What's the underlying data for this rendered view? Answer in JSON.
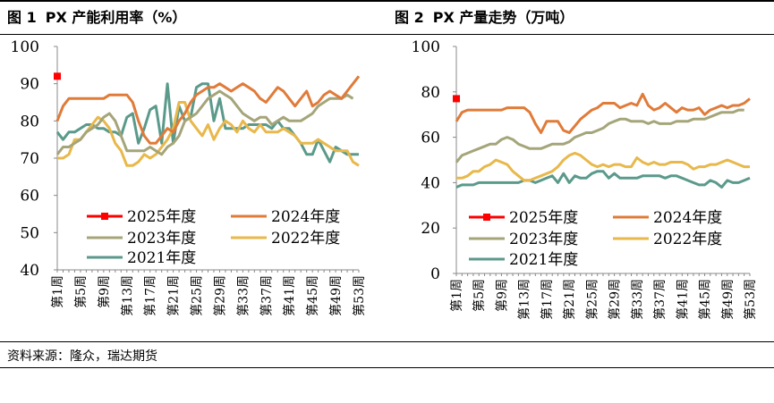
{
  "source": "资料来源：隆众，瑞达期货",
  "charts": [
    {
      "num": "图 1",
      "title": "PX 产能利用率（%）"
    },
    {
      "num": "图 2",
      "title": "PX 产量走势（万吨）"
    }
  ],
  "colors": {
    "2025": "#ff0000",
    "2024": "#e07b39",
    "2023": "#a5a57a",
    "2022": "#e8b84b",
    "2021": "#5b9a8b"
  },
  "chart_data": [
    {
      "type": "line",
      "title": "PX 产能利用率（%）",
      "ylim": [
        40,
        100
      ],
      "yticks": [
        40,
        50,
        60,
        70,
        80,
        90,
        100
      ],
      "x_range": [
        1,
        53
      ],
      "x_tick_labels": [
        "第1周",
        "第5周",
        "第9周",
        "第13周",
        "第17周",
        "第21周",
        "第25周",
        "第29周",
        "第33周",
        "第37周",
        "第41周",
        "第45周",
        "第49周",
        "第53周"
      ],
      "legend": [
        "2025年度",
        "2024年度",
        "2023年度",
        "2022年度",
        "2021年度"
      ],
      "series": [
        {
          "name": "2025年度",
          "x": [
            1
          ],
          "values": [
            92
          ]
        },
        {
          "name": "2024年度",
          "x": [
            1,
            2,
            3,
            4,
            5,
            6,
            7,
            8,
            9,
            10,
            11,
            12,
            13,
            14,
            15,
            16,
            17,
            18,
            19,
            20,
            21,
            22,
            23,
            24,
            25,
            26,
            27,
            28,
            29,
            30,
            31,
            32,
            33,
            34,
            35,
            36,
            37,
            38,
            39,
            40,
            41,
            42,
            43,
            44,
            45,
            46,
            47,
            48,
            49,
            50,
            51,
            52,
            53
          ],
          "values": [
            80,
            84,
            86,
            86,
            86,
            86,
            86,
            86,
            86,
            87,
            87,
            87,
            87,
            85,
            80,
            76,
            74,
            74,
            76,
            78,
            77,
            80,
            82,
            85,
            87,
            88,
            89,
            89,
            90,
            89,
            88,
            89,
            90,
            89,
            88,
            86,
            85,
            87,
            89,
            88,
            86,
            84,
            86,
            88,
            84,
            85,
            87,
            88,
            87,
            86,
            88,
            90,
            92
          ]
        },
        {
          "name": "2023年度",
          "x": [
            1,
            2,
            3,
            4,
            5,
            6,
            7,
            8,
            9,
            10,
            11,
            12,
            13,
            14,
            15,
            16,
            17,
            18,
            19,
            20,
            21,
            22,
            23,
            24,
            25,
            26,
            27,
            28,
            29,
            30,
            31,
            32,
            33,
            34,
            35,
            36,
            37,
            38,
            39,
            40,
            41,
            42,
            43,
            44,
            45,
            46,
            47,
            48,
            49,
            50,
            51,
            52
          ],
          "values": [
            71,
            73,
            73,
            74,
            75,
            77,
            78,
            79,
            81,
            82,
            80,
            76,
            72,
            72,
            72,
            72,
            73,
            72,
            71,
            73,
            74,
            76,
            80,
            81,
            82,
            84,
            86,
            87,
            88,
            87,
            86,
            84,
            82,
            81,
            80,
            81,
            81,
            79,
            80,
            81,
            80,
            80,
            80,
            81,
            82,
            84,
            85,
            86,
            86,
            86,
            87,
            86
          ]
        },
        {
          "name": "2022年度",
          "x": [
            1,
            2,
            3,
            4,
            5,
            6,
            7,
            8,
            9,
            10,
            11,
            12,
            13,
            14,
            15,
            16,
            17,
            18,
            19,
            20,
            21,
            22,
            23,
            24,
            25,
            26,
            27,
            28,
            29,
            30,
            31,
            32,
            33,
            34,
            35,
            36,
            37,
            38,
            39,
            40,
            41,
            42,
            43,
            44,
            45,
            46,
            47,
            48,
            49,
            50,
            51,
            52,
            53
          ],
          "values": [
            70,
            70,
            71,
            75,
            75,
            77,
            79,
            81,
            80,
            78,
            74,
            72,
            68,
            68,
            69,
            71,
            70,
            71,
            73,
            75,
            78,
            85,
            85,
            80,
            78,
            76,
            79,
            75,
            78,
            80,
            79,
            77,
            80,
            78,
            77,
            79,
            77,
            77,
            77,
            78,
            77,
            76,
            74,
            74,
            74,
            75,
            74,
            73,
            72,
            72,
            72,
            69,
            68
          ]
        },
        {
          "name": "2021年度",
          "x": [
            1,
            2,
            3,
            4,
            5,
            6,
            7,
            8,
            9,
            10,
            11,
            12,
            13,
            14,
            15,
            16,
            17,
            18,
            19,
            20,
            21,
            22,
            23,
            24,
            25,
            26,
            27,
            28,
            29,
            30,
            31,
            32,
            33,
            34,
            35,
            36,
            37,
            38,
            39,
            40,
            41,
            42,
            43,
            44,
            45,
            46,
            47,
            48,
            49,
            50,
            51,
            52,
            53
          ],
          "values": [
            77,
            75,
            77,
            77,
            78,
            79,
            79,
            78,
            78,
            77,
            77,
            76,
            81,
            82,
            74,
            78,
            83,
            84,
            74,
            90,
            74,
            84,
            80,
            81,
            89,
            90,
            90,
            80,
            86,
            78,
            78,
            78,
            78,
            79,
            79,
            79,
            79,
            78,
            80,
            78,
            78,
            76,
            74,
            71,
            71,
            75,
            72,
            69,
            73,
            72,
            71,
            71,
            71
          ]
        }
      ]
    },
    {
      "type": "line",
      "title": "PX 产量走势（万吨）",
      "ylim": [
        0,
        100
      ],
      "yticks": [
        0,
        20,
        40,
        60,
        80,
        100
      ],
      "x_range": [
        1,
        53
      ],
      "x_tick_labels": [
        "第1周",
        "第5周",
        "第9周",
        "第13周",
        "第17周",
        "第21周",
        "第25周",
        "第29周",
        "第33周",
        "第37周",
        "第41周",
        "第45周",
        "第49周",
        "第53周"
      ],
      "legend": [
        "2025年度",
        "2024年度",
        "2023年度",
        "2022年度",
        "2021年度"
      ],
      "series": [
        {
          "name": "2025年度",
          "x": [
            1
          ],
          "values": [
            77
          ]
        },
        {
          "name": "2024年度",
          "x": [
            1,
            2,
            3,
            4,
            5,
            6,
            7,
            8,
            9,
            10,
            11,
            12,
            13,
            14,
            15,
            16,
            17,
            18,
            19,
            20,
            21,
            22,
            23,
            24,
            25,
            26,
            27,
            28,
            29,
            30,
            31,
            32,
            33,
            34,
            35,
            36,
            37,
            38,
            39,
            40,
            41,
            42,
            43,
            44,
            45,
            46,
            47,
            48,
            49,
            50,
            51,
            52,
            53
          ],
          "values": [
            67,
            71,
            72,
            72,
            72,
            72,
            72,
            72,
            72,
            73,
            73,
            73,
            73,
            71,
            66,
            62,
            67,
            67,
            67,
            63,
            62,
            65,
            68,
            70,
            72,
            73,
            75,
            75,
            75,
            73,
            74,
            75,
            74,
            79,
            74,
            72,
            73,
            75,
            73,
            71,
            73,
            72,
            72,
            73,
            70,
            72,
            73,
            74,
            73,
            74,
            74,
            75,
            77
          ]
        },
        {
          "name": "2023年度",
          "x": [
            1,
            2,
            3,
            4,
            5,
            6,
            7,
            8,
            9,
            10,
            11,
            12,
            13,
            14,
            15,
            16,
            17,
            18,
            19,
            20,
            21,
            22,
            23,
            24,
            25,
            26,
            27,
            28,
            29,
            30,
            31,
            32,
            33,
            34,
            35,
            36,
            37,
            38,
            39,
            40,
            41,
            42,
            43,
            44,
            45,
            46,
            47,
            48,
            49,
            50,
            51,
            52
          ],
          "values": [
            49,
            52,
            53,
            54,
            55,
            56,
            57,
            57,
            59,
            60,
            59,
            57,
            56,
            55,
            55,
            55,
            56,
            57,
            57,
            57,
            58,
            60,
            61,
            62,
            62,
            63,
            64,
            66,
            67,
            68,
            68,
            67,
            67,
            67,
            66,
            67,
            66,
            66,
            66,
            67,
            67,
            67,
            68,
            68,
            68,
            69,
            70,
            71,
            71,
            71,
            72,
            72
          ]
        },
        {
          "name": "2022年度",
          "x": [
            1,
            2,
            3,
            4,
            5,
            6,
            7,
            8,
            9,
            10,
            11,
            12,
            13,
            14,
            15,
            16,
            17,
            18,
            19,
            20,
            21,
            22,
            23,
            24,
            25,
            26,
            27,
            28,
            29,
            30,
            31,
            32,
            33,
            34,
            35,
            36,
            37,
            38,
            39,
            40,
            41,
            42,
            43,
            44,
            45,
            46,
            47,
            48,
            49,
            50,
            51,
            52,
            53
          ],
          "values": [
            42,
            42,
            43,
            45,
            45,
            47,
            48,
            50,
            49,
            48,
            45,
            43,
            41,
            41,
            42,
            43,
            44,
            45,
            47,
            50,
            52,
            53,
            52,
            50,
            48,
            47,
            48,
            47,
            48,
            48,
            47,
            47,
            51,
            49,
            48,
            49,
            48,
            48,
            49,
            49,
            49,
            48,
            46,
            47,
            47,
            48,
            48,
            49,
            50,
            49,
            48,
            47,
            47
          ]
        },
        {
          "name": "2021年度",
          "x": [
            1,
            2,
            3,
            4,
            5,
            6,
            7,
            8,
            9,
            10,
            11,
            12,
            13,
            14,
            15,
            16,
            17,
            18,
            19,
            20,
            21,
            22,
            23,
            24,
            25,
            26,
            27,
            28,
            29,
            30,
            31,
            32,
            33,
            34,
            35,
            36,
            37,
            38,
            39,
            40,
            41,
            42,
            43,
            44,
            45,
            46,
            47,
            48,
            49,
            50,
            51,
            52,
            53
          ],
          "values": [
            38,
            39,
            39,
            39,
            40,
            40,
            40,
            40,
            40,
            40,
            40,
            40,
            41,
            41,
            40,
            41,
            42,
            43,
            40,
            44,
            40,
            43,
            42,
            42,
            44,
            45,
            45,
            42,
            44,
            42,
            42,
            42,
            42,
            43,
            43,
            43,
            43,
            42,
            43,
            43,
            42,
            41,
            40,
            39,
            39,
            41,
            40,
            38,
            41,
            40,
            40,
            41,
            42
          ]
        }
      ]
    }
  ]
}
